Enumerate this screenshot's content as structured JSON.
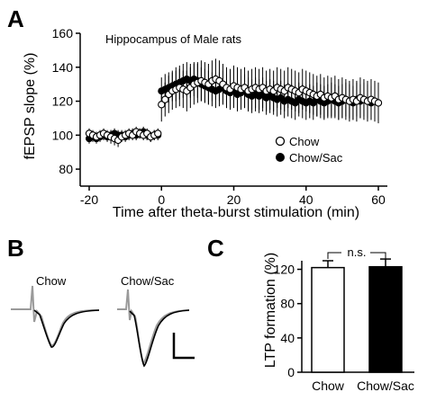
{
  "panels": {
    "a_letter": "A",
    "b_letter": "B",
    "c_letter": "C"
  },
  "chart_data": [
    {
      "panel": "A",
      "type": "scatter",
      "title": "Hippocampus of Male rats",
      "xlabel": "Time after theta-burst stimulation (min)",
      "ylabel": "fEPSP slope (%)",
      "xlim": [
        -20,
        60
      ],
      "ylim": [
        70,
        160
      ],
      "xticks": [
        -20,
        0,
        20,
        40,
        60
      ],
      "yticks": [
        80,
        100,
        120,
        140,
        160
      ],
      "grid": false,
      "legend_position": "bottom-right",
      "series": [
        {
          "name": "Chow",
          "marker": "open-circle",
          "color": "#000000",
          "x": [
            -20,
            -19,
            -18,
            -17,
            -16,
            -15,
            -14,
            -13,
            -12,
            -11,
            -10,
            -9,
            -8,
            -7,
            -6,
            -5,
            -4,
            -3,
            -2,
            -1,
            0,
            1,
            2,
            3,
            4,
            5,
            6,
            7,
            8,
            9,
            10,
            11,
            12,
            13,
            14,
            15,
            16,
            17,
            18,
            19,
            20,
            21,
            22,
            23,
            24,
            25,
            26,
            27,
            28,
            29,
            30,
            31,
            32,
            33,
            34,
            35,
            36,
            37,
            38,
            39,
            40,
            41,
            42,
            43,
            44,
            45,
            46,
            47,
            48,
            49,
            50,
            51,
            52,
            53,
            54,
            55,
            56,
            57,
            58,
            59,
            60
          ],
          "y": [
            101,
            100,
            99,
            100,
            101,
            100,
            99,
            98,
            97,
            99,
            100,
            101,
            100,
            102,
            101,
            100,
            101,
            99,
            100,
            101,
            118,
            121,
            124,
            126,
            127,
            128,
            127,
            126,
            128,
            130,
            131,
            132,
            131,
            130,
            132,
            133,
            132,
            130,
            128,
            127,
            129,
            128,
            127,
            128,
            126,
            127,
            128,
            127,
            128,
            126,
            127,
            126,
            128,
            127,
            126,
            128,
            127,
            126,
            125,
            127,
            126,
            125,
            124,
            123,
            124,
            122,
            123,
            122,
            123,
            121,
            122,
            121,
            120,
            121,
            120,
            122,
            121,
            120,
            121,
            120,
            119
          ],
          "error": [
            3,
            3,
            3,
            3,
            3,
            3,
            4,
            4,
            4,
            3,
            3,
            3,
            3,
            3,
            3,
            3,
            3,
            3,
            3,
            3,
            10,
            10,
            11,
            11,
            11,
            11,
            11,
            12,
            12,
            12,
            12,
            12,
            12,
            12,
            12,
            12,
            12,
            12,
            12,
            12,
            12,
            12,
            12,
            12,
            12,
            12,
            12,
            12,
            12,
            12,
            12,
            12,
            12,
            12,
            12,
            12,
            12,
            12,
            12,
            12,
            12,
            12,
            12,
            12,
            12,
            12,
            12,
            12,
            12,
            12,
            12,
            12,
            12,
            12,
            12,
            12,
            12,
            12,
            12,
            12,
            12
          ]
        },
        {
          "name": "Chow/Sac",
          "marker": "filled-circle",
          "color": "#000000",
          "x": [
            -20,
            -19,
            -18,
            -17,
            -16,
            -15,
            -14,
            -13,
            -12,
            -11,
            -10,
            -9,
            -8,
            -7,
            -6,
            -5,
            -4,
            -3,
            -2,
            -1,
            0,
            1,
            2,
            3,
            4,
            5,
            6,
            7,
            8,
            9,
            10,
            11,
            12,
            13,
            14,
            15,
            16,
            17,
            18,
            19,
            20,
            21,
            22,
            23,
            24,
            25,
            26,
            27,
            28,
            29,
            30,
            31,
            32,
            33,
            34,
            35,
            36,
            37,
            38,
            39,
            40,
            41,
            42,
            43,
            44,
            45,
            46,
            47,
            48,
            49,
            50,
            51,
            52,
            53,
            54,
            55,
            56,
            57,
            58,
            59,
            60
          ],
          "y": [
            98,
            99,
            98,
            99,
            100,
            99,
            100,
            101,
            100,
            100,
            99,
            100,
            101,
            100,
            101,
            102,
            100,
            99,
            100,
            100,
            126,
            127,
            128,
            129,
            130,
            131,
            132,
            133,
            132,
            133,
            132,
            130,
            129,
            128,
            127,
            126,
            127,
            128,
            126,
            125,
            126,
            124,
            125,
            126,
            124,
            123,
            124,
            123,
            124,
            122,
            123,
            122,
            121,
            122,
            120,
            121,
            120,
            119,
            121,
            120,
            119,
            120,
            119,
            121,
            120,
            119,
            120,
            121,
            120,
            119,
            120,
            121,
            120,
            119,
            121,
            120,
            121,
            120,
            119,
            120,
            119
          ],
          "error": [
            3,
            3,
            3,
            3,
            3,
            3,
            3,
            3,
            3,
            3,
            3,
            3,
            3,
            3,
            3,
            3,
            3,
            3,
            3,
            3,
            8,
            9,
            9,
            9,
            10,
            10,
            10,
            10,
            10,
            10,
            10,
            10,
            10,
            10,
            10,
            10,
            10,
            10,
            10,
            10,
            10,
            10,
            10,
            10,
            10,
            10,
            10,
            10,
            10,
            10,
            10,
            10,
            10,
            10,
            10,
            10,
            10,
            10,
            10,
            10,
            10,
            10,
            10,
            10,
            10,
            10,
            10,
            10,
            10,
            10,
            10,
            10,
            10,
            10,
            10,
            10,
            10,
            10,
            10,
            10,
            10
          ]
        }
      ]
    },
    {
      "panel": "B",
      "type": "line",
      "description_labels": [
        "Chow",
        "Chow/Sac"
      ]
    },
    {
      "panel": "C",
      "type": "bar",
      "categories": [
        "Chow",
        "Chow/Sac"
      ],
      "values": [
        122,
        123
      ],
      "errors": [
        8,
        9
      ],
      "colors": [
        "#ffffff",
        "#000000"
      ],
      "ylabel": "LTP formation (%)",
      "ylim": [
        0,
        130
      ],
      "yticks": [
        0,
        40,
        80,
        120
      ],
      "significance_label": "n.s."
    }
  ]
}
